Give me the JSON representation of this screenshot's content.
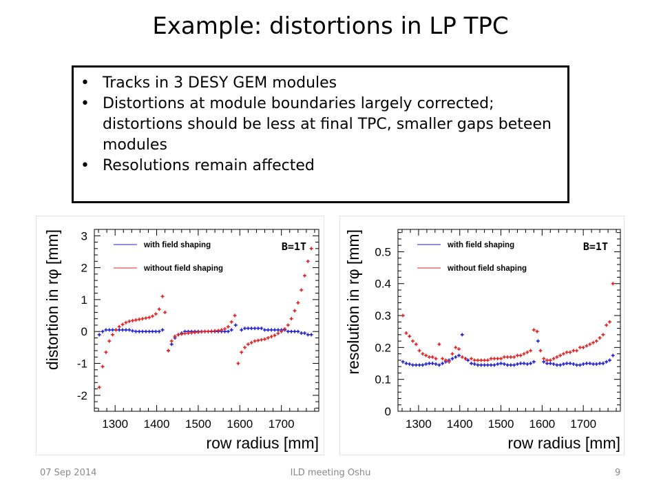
{
  "slide": {
    "title": "Example: distortions in LP TPC",
    "bullets": [
      "Tracks in 3 DESY GEM modules",
      "Distortions at module boundaries largely corrected; distortions should be less at final TPC, smaller gaps beteen modules",
      "Resolutions remain affected"
    ]
  },
  "footer": {
    "date": "07 Sep 2014",
    "center": "ILD meeting Oshu",
    "page": "9"
  },
  "colors": {
    "with": "#1f1fd6",
    "without": "#e02020"
  },
  "chart_data": [
    {
      "type": "scatter",
      "title": "",
      "xlabel": "row radius [mm]",
      "ylabel": "distortion in rφ [mm]",
      "annotation": "B=1T",
      "xlim": [
        1250,
        1790
      ],
      "ylim": [
        -2.5,
        3.2
      ],
      "xticks": [
        1300,
        1400,
        1500,
        1600,
        1700
      ],
      "yticks": [
        -2,
        -1,
        0,
        1,
        2,
        3
      ],
      "legend_placement": "top-left",
      "series": [
        {
          "name": "with field shaping",
          "color": "#1f1fd6",
          "x": [
            1262,
            1270,
            1278,
            1286,
            1294,
            1302,
            1310,
            1318,
            1326,
            1334,
            1342,
            1350,
            1358,
            1366,
            1374,
            1382,
            1390,
            1398,
            1406,
            1414,
            1428,
            1436,
            1444,
            1452,
            1460,
            1468,
            1476,
            1484,
            1492,
            1500,
            1508,
            1516,
            1524,
            1532,
            1540,
            1548,
            1556,
            1564,
            1572,
            1580,
            1590,
            1604,
            1612,
            1620,
            1628,
            1636,
            1644,
            1652,
            1660,
            1668,
            1676,
            1684,
            1692,
            1700,
            1708,
            1716,
            1724,
            1732,
            1740,
            1748,
            1756,
            1764,
            1772
          ],
          "y": [
            -0.1,
            0,
            0.05,
            0.05,
            0.05,
            0.05,
            0.05,
            0.05,
            0.05,
            0.05,
            0.02,
            0,
            0,
            0,
            0,
            0,
            0,
            0,
            0,
            0.05,
            -0.6,
            -0.4,
            -0.2,
            -0.1,
            -0.05,
            0,
            0,
            0,
            0,
            0,
            0,
            0,
            0,
            0,
            0,
            0,
            0,
            0,
            0,
            0.05,
            0.2,
            0.05,
            0.1,
            0.1,
            0.1,
            0.1,
            0.1,
            0.1,
            0.05,
            0.05,
            0.05,
            0.05,
            0.05,
            0.05,
            0.05,
            0,
            0,
            0,
            0,
            -0.05,
            -0.05,
            -0.1,
            -0.1
          ]
        },
        {
          "name": "without field shaping",
          "color": "#e02020",
          "x": [
            1262,
            1270,
            1278,
            1286,
            1294,
            1302,
            1310,
            1318,
            1326,
            1334,
            1342,
            1350,
            1358,
            1366,
            1374,
            1382,
            1390,
            1398,
            1406,
            1414,
            1420,
            1428,
            1436,
            1444,
            1452,
            1460,
            1468,
            1476,
            1484,
            1492,
            1500,
            1508,
            1516,
            1524,
            1532,
            1540,
            1548,
            1556,
            1564,
            1572,
            1580,
            1588,
            1596,
            1604,
            1612,
            1620,
            1628,
            1636,
            1644,
            1652,
            1660,
            1668,
            1676,
            1684,
            1692,
            1700,
            1708,
            1716,
            1724,
            1732,
            1740,
            1748,
            1756,
            1764,
            1772
          ],
          "y": [
            -1.75,
            -1.1,
            -0.65,
            -0.3,
            -0.1,
            0.05,
            0.15,
            0.22,
            0.28,
            0.32,
            0.34,
            0.36,
            0.38,
            0.4,
            0.42,
            0.44,
            0.48,
            0.55,
            0.7,
            1.1,
            0.6,
            -0.6,
            -0.3,
            -0.15,
            -0.1,
            -0.08,
            -0.06,
            -0.05,
            -0.04,
            -0.03,
            -0.02,
            -0.01,
            0,
            0,
            0.01,
            0.02,
            0.03,
            0.05,
            0.08,
            0.15,
            0.3,
            0.5,
            -1.0,
            -0.65,
            -0.5,
            -0.4,
            -0.35,
            -0.3,
            -0.28,
            -0.26,
            -0.24,
            -0.2,
            -0.16,
            -0.12,
            -0.06,
            0,
            0.08,
            0.2,
            0.4,
            0.65,
            0.9,
            1.3,
            1.75,
            2.2,
            2.6
          ]
        }
      ]
    },
    {
      "type": "scatter",
      "title": "",
      "xlabel": "row radius [mm]",
      "ylabel": "resolution in rφ [mm]",
      "annotation": "B=1T",
      "xlim": [
        1250,
        1790
      ],
      "ylim": [
        0,
        0.57
      ],
      "xticks": [
        1300,
        1400,
        1500,
        1600,
        1700
      ],
      "yticks": [
        0,
        0.1,
        0.2,
        0.3,
        0.4,
        0.5
      ],
      "legend_placement": "top-left",
      "series": [
        {
          "name": "with field shaping",
          "color": "#1f1fd6",
          "x": [
            1262,
            1270,
            1278,
            1286,
            1294,
            1302,
            1310,
            1318,
            1326,
            1334,
            1342,
            1350,
            1358,
            1366,
            1374,
            1382,
            1390,
            1398,
            1406,
            1414,
            1420,
            1428,
            1436,
            1444,
            1452,
            1460,
            1468,
            1476,
            1484,
            1492,
            1500,
            1508,
            1516,
            1524,
            1532,
            1540,
            1548,
            1556,
            1564,
            1572,
            1580,
            1590,
            1604,
            1612,
            1620,
            1628,
            1636,
            1644,
            1652,
            1660,
            1668,
            1676,
            1684,
            1692,
            1700,
            1708,
            1716,
            1724,
            1732,
            1740,
            1748,
            1756,
            1764,
            1772
          ],
          "y": [
            0.155,
            0.15,
            0.148,
            0.145,
            0.145,
            0.145,
            0.145,
            0.148,
            0.15,
            0.15,
            0.148,
            0.145,
            0.15,
            0.155,
            0.16,
            0.165,
            0.17,
            0.175,
            0.24,
            0.165,
            0.16,
            0.15,
            0.148,
            0.145,
            0.145,
            0.145,
            0.145,
            0.145,
            0.145,
            0.148,
            0.15,
            0.148,
            0.145,
            0.145,
            0.145,
            0.148,
            0.15,
            0.15,
            0.148,
            0.15,
            0.155,
            0.22,
            0.155,
            0.15,
            0.15,
            0.148,
            0.145,
            0.145,
            0.148,
            0.15,
            0.15,
            0.148,
            0.145,
            0.145,
            0.148,
            0.15,
            0.15,
            0.148,
            0.148,
            0.15,
            0.15,
            0.155,
            0.16,
            0.175
          ]
        },
        {
          "name": "without field shaping",
          "color": "#e02020",
          "x": [
            1262,
            1270,
            1278,
            1286,
            1294,
            1302,
            1310,
            1318,
            1326,
            1334,
            1342,
            1350,
            1358,
            1366,
            1374,
            1382,
            1390,
            1398,
            1406,
            1414,
            1428,
            1436,
            1444,
            1452,
            1460,
            1468,
            1476,
            1484,
            1492,
            1500,
            1508,
            1516,
            1524,
            1532,
            1540,
            1548,
            1556,
            1564,
            1572,
            1580,
            1588,
            1596,
            1604,
            1612,
            1620,
            1628,
            1636,
            1644,
            1652,
            1660,
            1668,
            1676,
            1684,
            1692,
            1700,
            1708,
            1716,
            1724,
            1732,
            1740,
            1748,
            1756,
            1764,
            1772
          ],
          "y": [
            0.3,
            0.245,
            0.235,
            0.22,
            0.21,
            0.19,
            0.18,
            0.175,
            0.17,
            0.17,
            0.165,
            0.21,
            0.165,
            0.16,
            0.155,
            0.18,
            0.2,
            0.195,
            0.17,
            0.165,
            0.165,
            0.16,
            0.16,
            0.16,
            0.16,
            0.16,
            0.165,
            0.165,
            0.165,
            0.165,
            0.17,
            0.17,
            0.17,
            0.17,
            0.175,
            0.175,
            0.18,
            0.185,
            0.19,
            0.255,
            0.25,
            0.19,
            0.165,
            0.16,
            0.16,
            0.165,
            0.17,
            0.175,
            0.18,
            0.185,
            0.185,
            0.19,
            0.19,
            0.2,
            0.2,
            0.205,
            0.21,
            0.215,
            0.22,
            0.23,
            0.24,
            0.27,
            0.28,
            0.4
          ]
        }
      ]
    }
  ]
}
